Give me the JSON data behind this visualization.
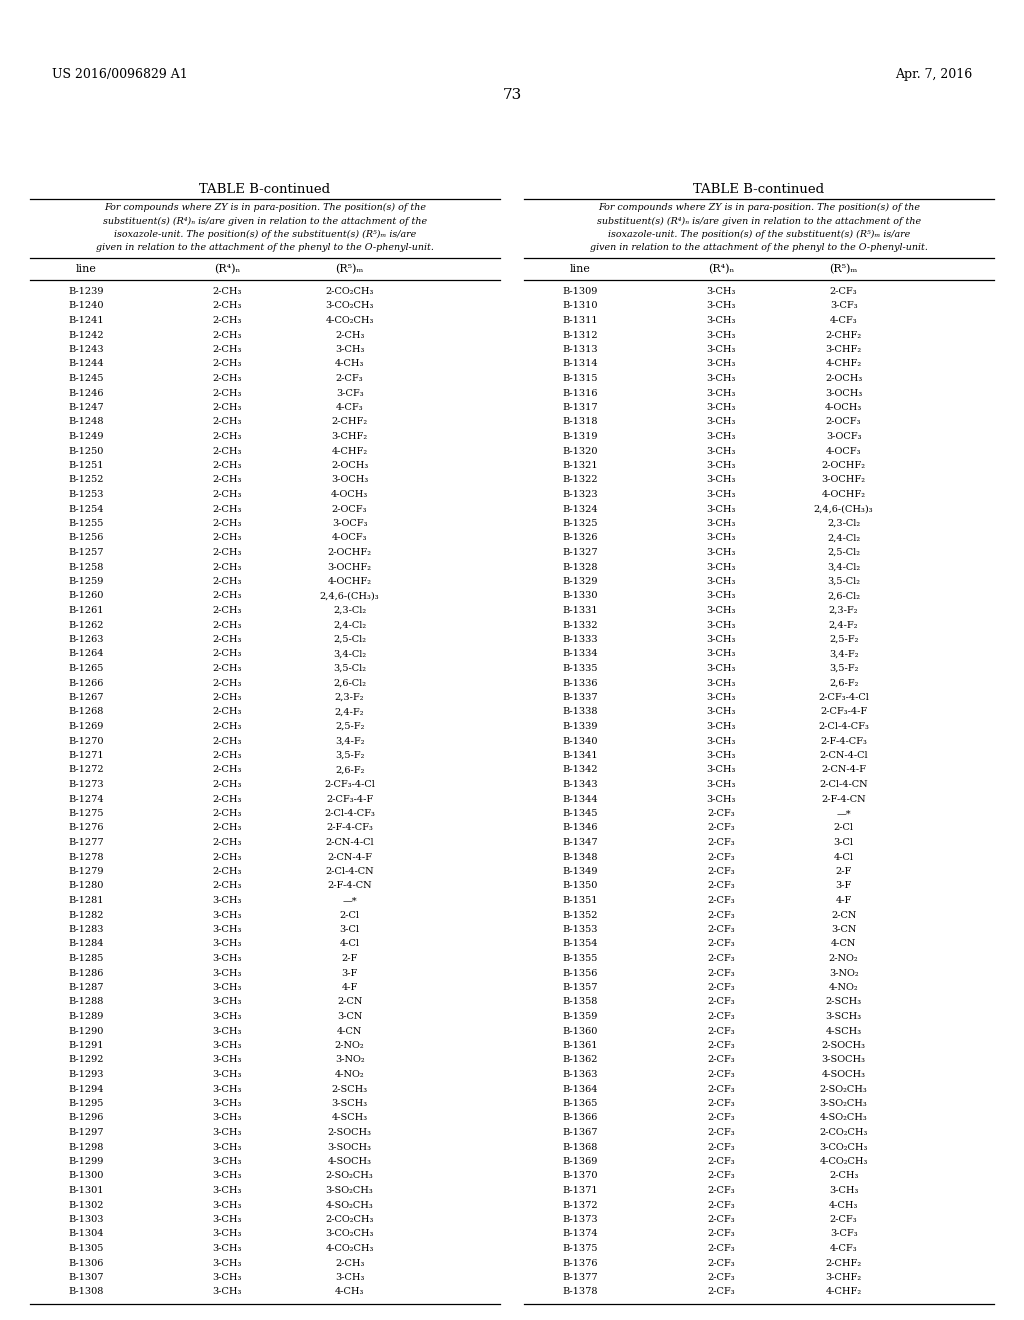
{
  "header_left": "US 2016/0096829 A1",
  "header_right": "Apr. 7, 2016",
  "page_number": "73",
  "table_title": "TABLE B-continued",
  "caption_lines": [
    "For compounds where ZY is in para-position. The position(s) of the",
    "substituent(s) (R⁴)ₙ is/are given in relation to the attachment of the",
    "isoxazole-unit. The position(s) of the substituent(s) (R⁵)ₘ is/are",
    "given in relation to the attachment of the phenyl to the O-phenyl-unit."
  ],
  "col_headers": [
    "line",
    "(R⁴)ₙ",
    "(R⁵)ₘ"
  ],
  "left_table": [
    [
      "B-1239",
      "2-CH₃",
      "2-CO₂CH₃"
    ],
    [
      "B-1240",
      "2-CH₃",
      "3-CO₂CH₃"
    ],
    [
      "B-1241",
      "2-CH₃",
      "4-CO₂CH₃"
    ],
    [
      "B-1242",
      "2-CH₃",
      "2-CH₃"
    ],
    [
      "B-1243",
      "2-CH₃",
      "3-CH₃"
    ],
    [
      "B-1244",
      "2-CH₃",
      "4-CH₃"
    ],
    [
      "B-1245",
      "2-CH₃",
      "2-CF₃"
    ],
    [
      "B-1246",
      "2-CH₃",
      "3-CF₃"
    ],
    [
      "B-1247",
      "2-CH₃",
      "4-CF₃"
    ],
    [
      "B-1248",
      "2-CH₃",
      "2-CHF₂"
    ],
    [
      "B-1249",
      "2-CH₃",
      "3-CHF₂"
    ],
    [
      "B-1250",
      "2-CH₃",
      "4-CHF₂"
    ],
    [
      "B-1251",
      "2-CH₃",
      "2-OCH₃"
    ],
    [
      "B-1252",
      "2-CH₃",
      "3-OCH₃"
    ],
    [
      "B-1253",
      "2-CH₃",
      "4-OCH₃"
    ],
    [
      "B-1254",
      "2-CH₃",
      "2-OCF₃"
    ],
    [
      "B-1255",
      "2-CH₃",
      "3-OCF₃"
    ],
    [
      "B-1256",
      "2-CH₃",
      "4-OCF₃"
    ],
    [
      "B-1257",
      "2-CH₃",
      "2-OCHF₂"
    ],
    [
      "B-1258",
      "2-CH₃",
      "3-OCHF₂"
    ],
    [
      "B-1259",
      "2-CH₃",
      "4-OCHF₂"
    ],
    [
      "B-1260",
      "2-CH₃",
      "2,4,6-(CH₃)₃"
    ],
    [
      "B-1261",
      "2-CH₃",
      "2,3-Cl₂"
    ],
    [
      "B-1262",
      "2-CH₃",
      "2,4-Cl₂"
    ],
    [
      "B-1263",
      "2-CH₃",
      "2,5-Cl₂"
    ],
    [
      "B-1264",
      "2-CH₃",
      "3,4-Cl₂"
    ],
    [
      "B-1265",
      "2-CH₃",
      "3,5-Cl₂"
    ],
    [
      "B-1266",
      "2-CH₃",
      "2,6-Cl₂"
    ],
    [
      "B-1267",
      "2-CH₃",
      "2,3-F₂"
    ],
    [
      "B-1268",
      "2-CH₃",
      "2,4-F₂"
    ],
    [
      "B-1269",
      "2-CH₃",
      "2,5-F₂"
    ],
    [
      "B-1270",
      "2-CH₃",
      "3,4-F₂"
    ],
    [
      "B-1271",
      "2-CH₃",
      "3,5-F₂"
    ],
    [
      "B-1272",
      "2-CH₃",
      "2,6-F₂"
    ],
    [
      "B-1273",
      "2-CH₃",
      "2-CF₃-4-Cl"
    ],
    [
      "B-1274",
      "2-CH₃",
      "2-CF₃-4-F"
    ],
    [
      "B-1275",
      "2-CH₃",
      "2-Cl-4-CF₃"
    ],
    [
      "B-1276",
      "2-CH₃",
      "2-F-4-CF₃"
    ],
    [
      "B-1277",
      "2-CH₃",
      "2-CN-4-Cl"
    ],
    [
      "B-1278",
      "2-CH₃",
      "2-CN-4-F"
    ],
    [
      "B-1279",
      "2-CH₃",
      "2-Cl-4-CN"
    ],
    [
      "B-1280",
      "2-CH₃",
      "2-F-4-CN"
    ],
    [
      "B-1281",
      "3-CH₃",
      "—*"
    ],
    [
      "B-1282",
      "3-CH₃",
      "2-Cl"
    ],
    [
      "B-1283",
      "3-CH₃",
      "3-Cl"
    ],
    [
      "B-1284",
      "3-CH₃",
      "4-Cl"
    ],
    [
      "B-1285",
      "3-CH₃",
      "2-F"
    ],
    [
      "B-1286",
      "3-CH₃",
      "3-F"
    ],
    [
      "B-1287",
      "3-CH₃",
      "4-F"
    ],
    [
      "B-1288",
      "3-CH₃",
      "2-CN"
    ],
    [
      "B-1289",
      "3-CH₃",
      "3-CN"
    ],
    [
      "B-1290",
      "3-CH₃",
      "4-CN"
    ],
    [
      "B-1291",
      "3-CH₃",
      "2-NO₂"
    ],
    [
      "B-1292",
      "3-CH₃",
      "3-NO₂"
    ],
    [
      "B-1293",
      "3-CH₃",
      "4-NO₂"
    ],
    [
      "B-1294",
      "3-CH₃",
      "2-SCH₃"
    ],
    [
      "B-1295",
      "3-CH₃",
      "3-SCH₃"
    ],
    [
      "B-1296",
      "3-CH₃",
      "4-SCH₃"
    ],
    [
      "B-1297",
      "3-CH₃",
      "2-SOCH₃"
    ],
    [
      "B-1298",
      "3-CH₃",
      "3-SOCH₃"
    ],
    [
      "B-1299",
      "3-CH₃",
      "4-SOCH₃"
    ],
    [
      "B-1300",
      "3-CH₃",
      "2-SO₂CH₃"
    ],
    [
      "B-1301",
      "3-CH₃",
      "3-SO₂CH₃"
    ],
    [
      "B-1302",
      "3-CH₃",
      "4-SO₂CH₃"
    ],
    [
      "B-1303",
      "3-CH₃",
      "2-CO₂CH₃"
    ],
    [
      "B-1304",
      "3-CH₃",
      "3-CO₂CH₃"
    ],
    [
      "B-1305",
      "3-CH₃",
      "4-CO₂CH₃"
    ],
    [
      "B-1306",
      "3-CH₃",
      "2-CH₃"
    ],
    [
      "B-1307",
      "3-CH₃",
      "3-CH₃"
    ],
    [
      "B-1308",
      "3-CH₃",
      "4-CH₃"
    ]
  ],
  "right_table": [
    [
      "B-1309",
      "3-CH₃",
      "2-CF₃"
    ],
    [
      "B-1310",
      "3-CH₃",
      "3-CF₃"
    ],
    [
      "B-1311",
      "3-CH₃",
      "4-CF₃"
    ],
    [
      "B-1312",
      "3-CH₃",
      "2-CHF₂"
    ],
    [
      "B-1313",
      "3-CH₃",
      "3-CHF₂"
    ],
    [
      "B-1314",
      "3-CH₃",
      "4-CHF₂"
    ],
    [
      "B-1315",
      "3-CH₃",
      "2-OCH₃"
    ],
    [
      "B-1316",
      "3-CH₃",
      "3-OCH₃"
    ],
    [
      "B-1317",
      "3-CH₃",
      "4-OCH₃"
    ],
    [
      "B-1318",
      "3-CH₃",
      "2-OCF₃"
    ],
    [
      "B-1319",
      "3-CH₃",
      "3-OCF₃"
    ],
    [
      "B-1320",
      "3-CH₃",
      "4-OCF₃"
    ],
    [
      "B-1321",
      "3-CH₃",
      "2-OCHF₂"
    ],
    [
      "B-1322",
      "3-CH₃",
      "3-OCHF₂"
    ],
    [
      "B-1323",
      "3-CH₃",
      "4-OCHF₂"
    ],
    [
      "B-1324",
      "3-CH₃",
      "2,4,6-(CH₃)₃"
    ],
    [
      "B-1325",
      "3-CH₃",
      "2,3-Cl₂"
    ],
    [
      "B-1326",
      "3-CH₃",
      "2,4-Cl₂"
    ],
    [
      "B-1327",
      "3-CH₃",
      "2,5-Cl₂"
    ],
    [
      "B-1328",
      "3-CH₃",
      "3,4-Cl₂"
    ],
    [
      "B-1329",
      "3-CH₃",
      "3,5-Cl₂"
    ],
    [
      "B-1330",
      "3-CH₃",
      "2,6-Cl₂"
    ],
    [
      "B-1331",
      "3-CH₃",
      "2,3-F₂"
    ],
    [
      "B-1332",
      "3-CH₃",
      "2,4-F₂"
    ],
    [
      "B-1333",
      "3-CH₃",
      "2,5-F₂"
    ],
    [
      "B-1334",
      "3-CH₃",
      "3,4-F₂"
    ],
    [
      "B-1335",
      "3-CH₃",
      "3,5-F₂"
    ],
    [
      "B-1336",
      "3-CH₃",
      "2,6-F₂"
    ],
    [
      "B-1337",
      "3-CH₃",
      "2-CF₃-4-Cl"
    ],
    [
      "B-1338",
      "3-CH₃",
      "2-CF₃-4-F"
    ],
    [
      "B-1339",
      "3-CH₃",
      "2-Cl-4-CF₃"
    ],
    [
      "B-1340",
      "3-CH₃",
      "2-F-4-CF₃"
    ],
    [
      "B-1341",
      "3-CH₃",
      "2-CN-4-Cl"
    ],
    [
      "B-1342",
      "3-CH₃",
      "2-CN-4-F"
    ],
    [
      "B-1343",
      "3-CH₃",
      "2-Cl-4-CN"
    ],
    [
      "B-1344",
      "3-CH₃",
      "2-F-4-CN"
    ],
    [
      "B-1345",
      "2-CF₃",
      "—*"
    ],
    [
      "B-1346",
      "2-CF₃",
      "2-Cl"
    ],
    [
      "B-1347",
      "2-CF₃",
      "3-Cl"
    ],
    [
      "B-1348",
      "2-CF₃",
      "4-Cl"
    ],
    [
      "B-1349",
      "2-CF₃",
      "2-F"
    ],
    [
      "B-1350",
      "2-CF₃",
      "3-F"
    ],
    [
      "B-1351",
      "2-CF₃",
      "4-F"
    ],
    [
      "B-1352",
      "2-CF₃",
      "2-CN"
    ],
    [
      "B-1353",
      "2-CF₃",
      "3-CN"
    ],
    [
      "B-1354",
      "2-CF₃",
      "4-CN"
    ],
    [
      "B-1355",
      "2-CF₃",
      "2-NO₂"
    ],
    [
      "B-1356",
      "2-CF₃",
      "3-NO₂"
    ],
    [
      "B-1357",
      "2-CF₃",
      "4-NO₂"
    ],
    [
      "B-1358",
      "2-CF₃",
      "2-SCH₃"
    ],
    [
      "B-1359",
      "2-CF₃",
      "3-SCH₃"
    ],
    [
      "B-1360",
      "2-CF₃",
      "4-SCH₃"
    ],
    [
      "B-1361",
      "2-CF₃",
      "2-SOCH₃"
    ],
    [
      "B-1362",
      "2-CF₃",
      "3-SOCH₃"
    ],
    [
      "B-1363",
      "2-CF₃",
      "4-SOCH₃"
    ],
    [
      "B-1364",
      "2-CF₃",
      "2-SO₂CH₃"
    ],
    [
      "B-1365",
      "2-CF₃",
      "3-SO₂CH₃"
    ],
    [
      "B-1366",
      "2-CF₃",
      "4-SO₂CH₃"
    ],
    [
      "B-1367",
      "2-CF₃",
      "2-CO₂CH₃"
    ],
    [
      "B-1368",
      "2-CF₃",
      "3-CO₂CH₃"
    ],
    [
      "B-1369",
      "2-CF₃",
      "4-CO₂CH₃"
    ],
    [
      "B-1370",
      "2-CF₃",
      "2-CH₃"
    ],
    [
      "B-1371",
      "2-CF₃",
      "3-CH₃"
    ],
    [
      "B-1372",
      "2-CF₃",
      "4-CH₃"
    ],
    [
      "B-1373",
      "2-CF₃",
      "2-CF₃"
    ],
    [
      "B-1374",
      "2-CF₃",
      "3-CF₃"
    ],
    [
      "B-1375",
      "2-CF₃",
      "4-CF₃"
    ],
    [
      "B-1376",
      "2-CF₃",
      "2-CHF₂"
    ],
    [
      "B-1377",
      "2-CF₃",
      "3-CHF₂"
    ],
    [
      "B-1378",
      "2-CF₃",
      "4-CHF₂"
    ]
  ],
  "bg_color": "#ffffff",
  "text_color": "#000000"
}
